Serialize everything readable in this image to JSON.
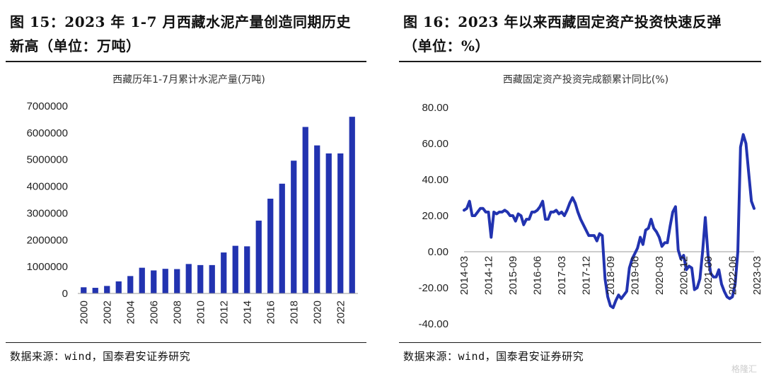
{
  "left_panel": {
    "figure_title_line1": "图 15：2023 年 1-7 月西藏水泥产量创造同期历史",
    "figure_title_line2": "新高（单位：万吨）",
    "source": "数据来源：wind，国泰君安证券研究"
  },
  "right_panel": {
    "figure_title_line1": "图 16：2023 年以来西藏固定资产投资快速反弹",
    "figure_title_line2": "（单位：%）",
    "source": "数据来源：wind，国泰君安证券研究"
  },
  "watermark": "格隆汇",
  "colors": {
    "series": "#2233b0",
    "axis": "#999999"
  },
  "chart_data": [
    {
      "type": "bar",
      "title": "西藏历年1-7月累计水泥产量(万吨)",
      "xlabel": "",
      "ylabel": "",
      "ylim": [
        0,
        7000000
      ],
      "yticks": [
        "0",
        "1000000",
        "2000000",
        "3000000",
        "4000000",
        "5000000",
        "6000000",
        "7000000"
      ],
      "categories": [
        "2000",
        "2001",
        "2002",
        "2003",
        "2004",
        "2005",
        "2006",
        "2007",
        "2008",
        "2009",
        "2010",
        "2011",
        "2012",
        "2013",
        "2014",
        "2015",
        "2016",
        "2017",
        "2018",
        "2019",
        "2020",
        "2021",
        "2022",
        "2023"
      ],
      "category_labels_shown": [
        "2000",
        "2002",
        "2004",
        "2006",
        "2008",
        "2010",
        "2012",
        "2014",
        "2016",
        "2018",
        "2020",
        "2022"
      ],
      "values": [
        230000,
        210000,
        280000,
        450000,
        650000,
        960000,
        860000,
        920000,
        910000,
        1100000,
        1060000,
        1060000,
        1530000,
        1780000,
        1760000,
        2720000,
        3540000,
        4100000,
        4960000,
        6220000,
        5530000,
        5230000,
        5230000,
        6600000
      ]
    },
    {
      "type": "line",
      "title": "西藏固定资产投资完成额累计同比(%)",
      "xlabel": "",
      "ylabel": "",
      "ylim": [
        -40,
        80
      ],
      "yticks": [
        "-40.00",
        "-20.00",
        "0.00",
        "20.00",
        "40.00",
        "60.00",
        "80.00"
      ],
      "x_start": "2014-03",
      "x_step_months": 1,
      "x_tick_labels": [
        "2014-03",
        "2014-12",
        "2015-09",
        "2016-06",
        "2017-03",
        "2017-12",
        "2018-09",
        "2019-06",
        "2020-03",
        "2020-12",
        "2021-09",
        "2022-06",
        "2023-03"
      ],
      "values": [
        23,
        24,
        28,
        20,
        20,
        22,
        24,
        24,
        22,
        22,
        8,
        22,
        21,
        22,
        22,
        23,
        22,
        20,
        20,
        17,
        21,
        20,
        15,
        18,
        18,
        22,
        22,
        23,
        25,
        28,
        18,
        18,
        22,
        22,
        23,
        21,
        22,
        20,
        23,
        27,
        30,
        27,
        22,
        18,
        15,
        12,
        9,
        9,
        9,
        6,
        10,
        9,
        -15,
        -25,
        -30,
        -31,
        -27,
        -24,
        -26,
        -24,
        -22,
        -9,
        -4,
        -1,
        2,
        8,
        4,
        12,
        13,
        18,
        13,
        11,
        8,
        3,
        5,
        5,
        14,
        22,
        25,
        1,
        -4,
        -2,
        -10,
        -8,
        -9,
        -21,
        -20,
        -15,
        0,
        19,
        -2,
        -12,
        -14,
        -14,
        -10,
        -18,
        -22,
        -25,
        -26,
        -25,
        -18,
        0,
        58,
        65,
        60,
        44,
        28,
        24
      ]
    }
  ]
}
